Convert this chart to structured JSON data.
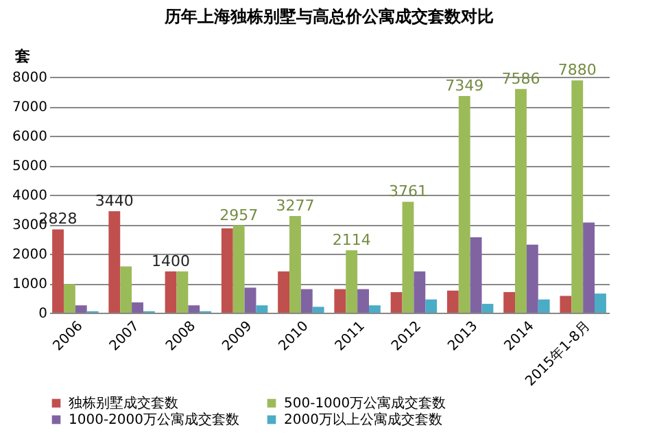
{
  "chart_data": {
    "type": "bar",
    "title": "历年上海独栋别墅与高总价公寓成交套数对比",
    "ylabel": "套",
    "categories": [
      "2006",
      "2007",
      "2008",
      "2009",
      "2010",
      "2011",
      "2012",
      "2013",
      "2014",
      "2015年1-8月"
    ],
    "series": [
      {
        "name": "独栋别墅成交套数",
        "color": "#c0504d",
        "values": [
          2828,
          3440,
          1400,
          2860,
          1400,
          800,
          700,
          750,
          700,
          570
        ],
        "value_labels": [
          "2828",
          "3440",
          "1400",
          null,
          null,
          null,
          null,
          null,
          null,
          null
        ]
      },
      {
        "name": "500-1000万公寓成交套数",
        "color": "#9bbb59",
        "values": [
          970,
          1570,
          1400,
          2957,
          3277,
          2114,
          3761,
          7349,
          7586,
          7880
        ],
        "value_labels": [
          null,
          null,
          null,
          "2957",
          "3277",
          "2114",
          "3761",
          "7349",
          "7586",
          "7880"
        ]
      },
      {
        "name": "1000-2000万公寓成交套数",
        "color": "#8064a2",
        "values": [
          250,
          350,
          250,
          850,
          800,
          800,
          1400,
          2560,
          2310,
          3060
        ]
      },
      {
        "name": "2000万以上公寓成交套数",
        "color": "#4bacc6",
        "values": [
          50,
          50,
          50,
          250,
          200,
          250,
          450,
          300,
          450,
          650
        ]
      }
    ],
    "ylim": [
      0,
      8000
    ],
    "yticks": [
      0,
      1000,
      2000,
      3000,
      4000,
      5000,
      6000,
      7000,
      8000
    ],
    "grid": "y",
    "legend": "bottom"
  }
}
